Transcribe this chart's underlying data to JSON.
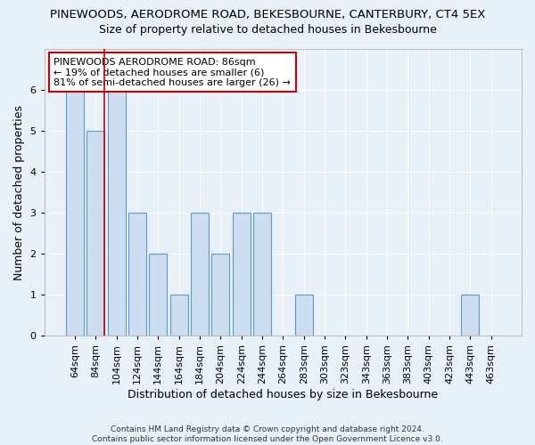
{
  "title_line1": "PINEWOODS, AERODROME ROAD, BEKESBOURNE, CANTERBURY, CT4 5EX",
  "title_line2": "Size of property relative to detached houses in Bekesbourne",
  "xlabel": "Distribution of detached houses by size in Bekesbourne",
  "ylabel": "Number of detached properties",
  "footnote": "Contains HM Land Registry data © Crown copyright and database right 2024.\nContains public sector information licensed under the Open Government Licence v3.0.",
  "categories": [
    "64sqm",
    "84sqm",
    "104sqm",
    "124sqm",
    "144sqm",
    "164sqm",
    "184sqm",
    "204sqm",
    "224sqm",
    "244sqm",
    "264sqm",
    "283sqm",
    "303sqm",
    "323sqm",
    "343sqm",
    "363sqm",
    "383sqm",
    "403sqm",
    "423sqm",
    "443sqm",
    "463sqm"
  ],
  "values": [
    6,
    5,
    6,
    3,
    2,
    1,
    3,
    2,
    3,
    3,
    0,
    1,
    0,
    0,
    0,
    0,
    0,
    0,
    0,
    1,
    0
  ],
  "bar_color": "#ccddf0",
  "bar_edge_color": "#5b9bd5",
  "subject_line_color": "#cc0000",
  "annotation_text": "PINEWOODS AERODROME ROAD: 86sqm\n← 19% of detached houses are smaller (6)\n81% of semi-detached houses are larger (26) →",
  "annotation_box_color": "#ffffff",
  "annotation_box_edge_color": "#cc0000",
  "ylim": [
    0,
    7
  ],
  "yticks": [
    0,
    1,
    2,
    3,
    4,
    5,
    6,
    7
  ],
  "background_color": "#e8f0f8",
  "plot_background_color": "#e8f0f8",
  "grid_color": "#ffffff",
  "title_fontsize": 9.5,
  "subtitle_fontsize": 9,
  "axis_label_fontsize": 9,
  "tick_fontsize": 8,
  "bar_width": 0.85
}
